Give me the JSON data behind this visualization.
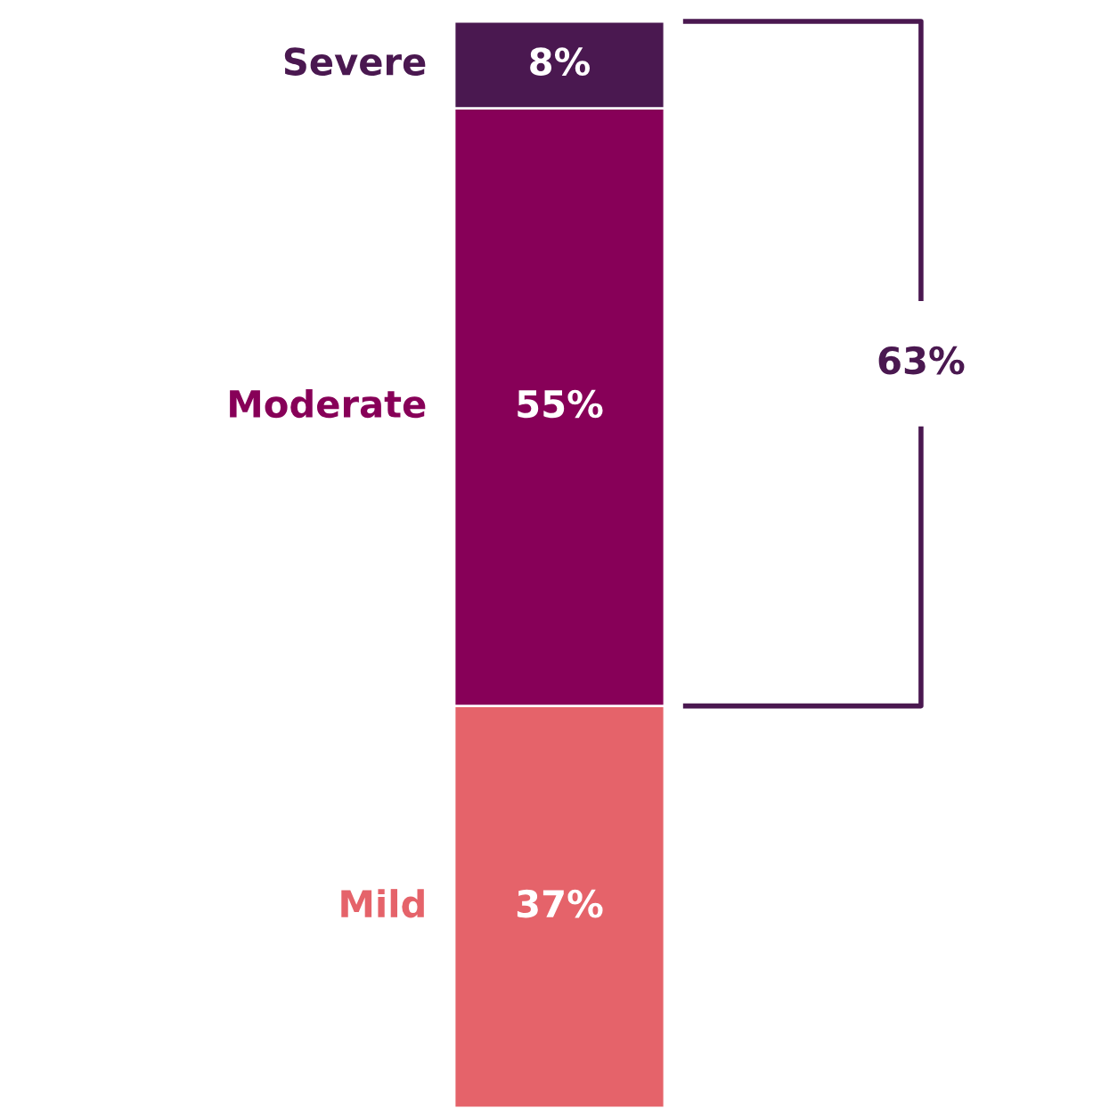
{
  "chart_data": {
    "type": "bar",
    "stacked": true,
    "categories": [
      null
    ],
    "tick_labels": false,
    "series": [
      {
        "name": "Mild",
        "color": "#e5636a",
        "values": [
          37
        ],
        "value_labels": [
          "37%"
        ]
      },
      {
        "name": "Moderate",
        "color": "#870058",
        "values": [
          55
        ],
        "value_labels": [
          "55%"
        ]
      },
      {
        "name": "Severe",
        "color": "#4a1850",
        "values": [
          8
        ],
        "value_labels": [
          "8%"
        ]
      }
    ],
    "annotations": [
      "63%"
    ]
  }
}
